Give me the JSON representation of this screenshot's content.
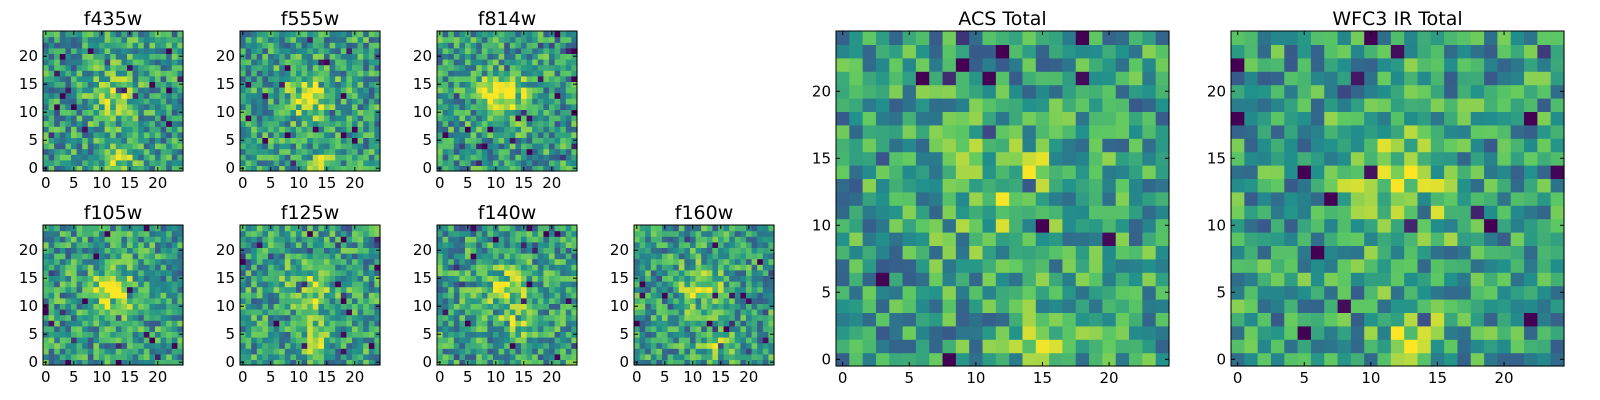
{
  "figure_title": "",
  "colormap": [
    "#440154",
    "#3b528b",
    "#21918c",
    "#5ec962",
    "#fde725"
  ],
  "chart_data": [
    {
      "type": "heatmap",
      "title": "f435w",
      "grid_size": 25,
      "xlim": [
        0,
        24
      ],
      "ylim": [
        0,
        24
      ],
      "xticks": [
        0,
        5,
        10,
        15,
        20
      ],
      "yticks": [
        0,
        5,
        10,
        15,
        20
      ],
      "peak": [
        13,
        2
      ],
      "note_visual": "noisy, faint central source"
    },
    {
      "type": "heatmap",
      "title": "f555w",
      "grid_size": 25,
      "xlim": [
        0,
        24
      ],
      "ylim": [
        0,
        24
      ],
      "xticks": [
        0,
        5,
        10,
        15,
        20
      ],
      "yticks": [
        0,
        5,
        10,
        15,
        20
      ],
      "peak": [
        14,
        1
      ]
    },
    {
      "type": "heatmap",
      "title": "f814w",
      "grid_size": 25,
      "xlim": [
        0,
        24
      ],
      "ylim": [
        0,
        24
      ],
      "xticks": [
        0,
        5,
        10,
        15,
        20
      ],
      "yticks": [
        0,
        5,
        10,
        15,
        20
      ],
      "peak": [
        10,
        14
      ]
    },
    {
      "type": "heatmap",
      "title": "f105w",
      "grid_size": 25,
      "xlim": [
        0,
        24
      ],
      "ylim": [
        0,
        24
      ],
      "xticks": [
        0,
        5,
        10,
        15,
        20
      ],
      "yticks": [
        0,
        5,
        10,
        15,
        20
      ],
      "peak": [
        12,
        12
      ]
    },
    {
      "type": "heatmap",
      "title": "f125w",
      "grid_size": 25,
      "xlim": [
        0,
        24
      ],
      "ylim": [
        0,
        24
      ],
      "xticks": [
        0,
        5,
        10,
        15,
        20
      ],
      "yticks": [
        0,
        5,
        10,
        15,
        20
      ],
      "peak": [
        13,
        4
      ]
    },
    {
      "type": "heatmap",
      "title": "f140w",
      "grid_size": 25,
      "xlim": [
        0,
        24
      ],
      "ylim": [
        0,
        24
      ],
      "xticks": [
        0,
        5,
        10,
        15,
        20
      ],
      "yticks": [
        0,
        5,
        10,
        15,
        20
      ],
      "peak": [
        14,
        7
      ]
    },
    {
      "type": "heatmap",
      "title": "f160w",
      "grid_size": 25,
      "xlim": [
        0,
        24
      ],
      "ylim": [
        0,
        24
      ],
      "xticks": [
        0,
        5,
        10,
        15,
        20
      ],
      "yticks": [
        0,
        5,
        10,
        15,
        20
      ],
      "peak": [
        14,
        3
      ]
    },
    {
      "type": "heatmap",
      "title": "ACS Total",
      "grid_size": 25,
      "xlim": [
        0,
        24
      ],
      "ylim": [
        0,
        24
      ],
      "xticks": [
        0,
        5,
        10,
        15,
        20
      ],
      "yticks": [
        0,
        5,
        10,
        15,
        20
      ],
      "peak": [
        15,
        1
      ]
    },
    {
      "type": "heatmap",
      "title": "WFC3 IR Total",
      "grid_size": 25,
      "xlim": [
        0,
        24
      ],
      "ylim": [
        0,
        24
      ],
      "xticks": [
        0,
        5,
        10,
        15,
        20
      ],
      "yticks": [
        0,
        5,
        10,
        15,
        20
      ],
      "peak": [
        13,
        2
      ]
    }
  ]
}
